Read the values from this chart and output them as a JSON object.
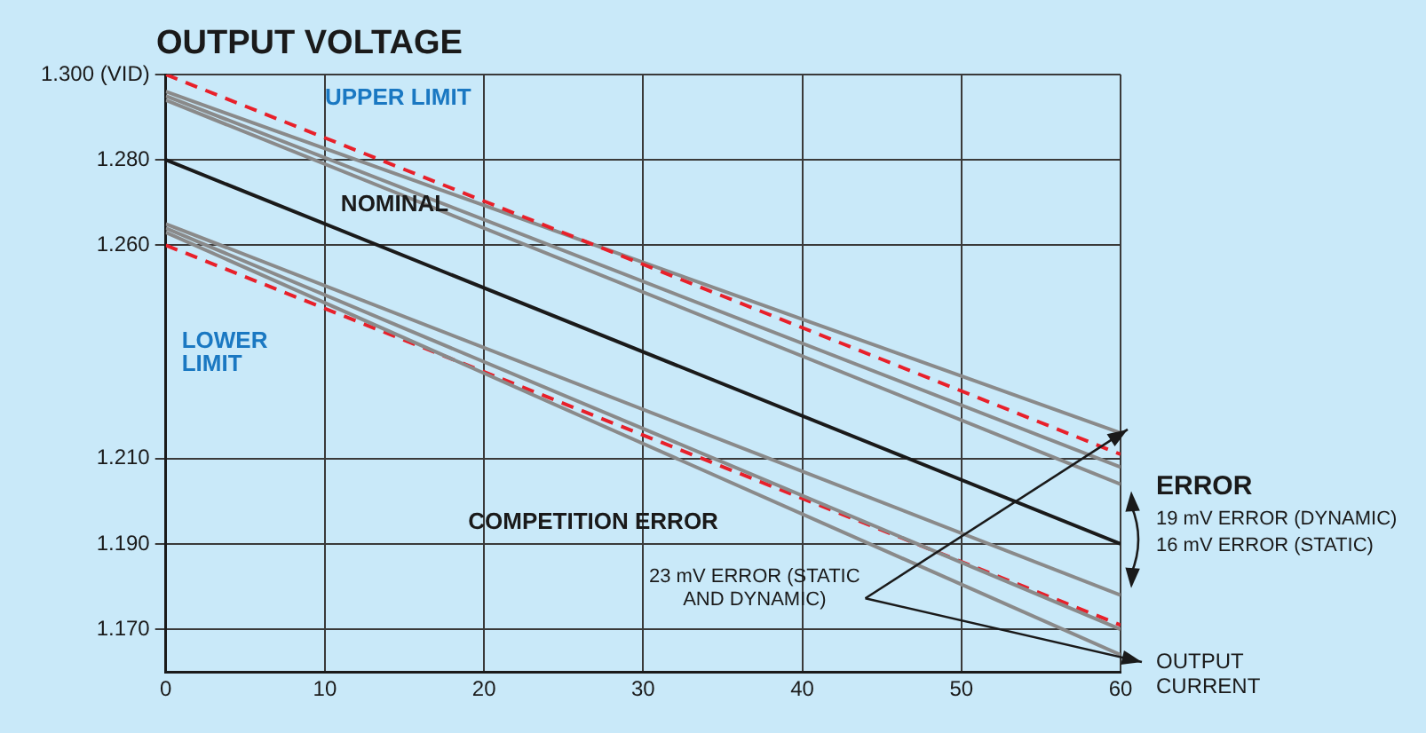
{
  "chart_data": {
    "type": "line",
    "title": "OUTPUT VOLTAGE",
    "xlabel": "OUTPUT CURRENT",
    "x": [
      0,
      60
    ],
    "series": [
      {
        "color": "#e8202a",
        "line_style": "dashed",
        "values": [
          1.3,
          1.211
        ]
      },
      {
        "color": "#8a8a8a",
        "values": [
          1.296,
          1.216
        ]
      },
      {
        "color": "#8a8a8a",
        "values": [
          1.295,
          1.208
        ]
      },
      {
        "color": "#8a8a8a",
        "values": [
          1.294,
          1.204
        ]
      },
      {
        "color": "#1a1a1a",
        "values": [
          1.28,
          1.19
        ]
      },
      {
        "color": "#8a8a8a",
        "values": [
          1.265,
          1.178
        ]
      },
      {
        "color": "#8a8a8a",
        "values": [
          1.264,
          1.17
        ]
      },
      {
        "color": "#8a8a8a",
        "values": [
          1.263,
          1.164
        ]
      },
      {
        "color": "#e8202a",
        "line_style": "dashed",
        "values": [
          1.26,
          1.171
        ]
      }
    ],
    "xlim": [
      0,
      60
    ],
    "xticks": [
      0,
      10,
      20,
      30,
      40,
      50,
      60
    ],
    "ylim": [
      1.16,
      1.3
    ],
    "yticks": [
      {
        "value": 1.3,
        "label": "1.300 (VID)"
      },
      {
        "value": 1.28,
        "label": "1.280"
      },
      {
        "value": 1.26,
        "label": "1.260"
      },
      {
        "value": 1.21,
        "label": "1.210"
      },
      {
        "value": 1.19,
        "label": "1.190"
      },
      {
        "value": 1.17,
        "label": "1.170"
      }
    ],
    "grid": true,
    "legend": false,
    "marker": "none",
    "line_style": "solid",
    "annotations": [
      "UPPER LIMIT",
      "NOMINAL",
      "LOWER LIMIT",
      "COMPETITION ERROR",
      {
        "text": "23 mV ERROR (STATIC AND DYNAMIC)",
        "x": 60,
        "y": 1.216
      },
      "ERROR",
      "19 mV ERROR (DYNAMIC)",
      "16 mV ERROR (STATIC)"
    ]
  }
}
